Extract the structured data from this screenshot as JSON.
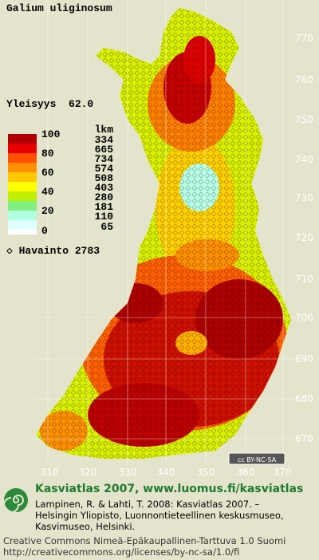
{
  "header": {
    "species": "Galium uliginosum",
    "frequency": "Yleisyys  62.0"
  },
  "legend": {
    "scale_labels": [
      "100",
      "80",
      "60",
      "40",
      "20",
      "0"
    ],
    "count_header": "lkm",
    "counts": [
      "334",
      "665",
      "734",
      "574",
      "508",
      "403",
      "280",
      "181",
      "110",
      "65"
    ],
    "observations": "◇ Havainto 2783"
  },
  "map": {
    "y_ticks": [
      770,
      760,
      750,
      740,
      730,
      720,
      710,
      700,
      690,
      680,
      670
    ],
    "x_ticks": [
      310,
      320,
      330,
      340,
      350,
      360,
      370
    ],
    "license_badge": "cc BY-NC-SA"
  },
  "footer": {
    "headline": "Kasviatlas 2007, www.luomus.fi/kasviatlas",
    "citation": [
      "Lampinen, R. & Lahti, T. 2008: Kasviatlas 2007. –",
      "Helsingin Yliopisto, Luonnontieteellinen keskusmuseo,",
      "Kasvimuseo, Helsinki."
    ],
    "license": [
      "Creative Commons Nimeä-Epäkaupallinen-Tarttuva 1.0 Suomi",
      "http://creativecommons.org/licenses/by-nc-sa/1.0/fi"
    ]
  }
}
